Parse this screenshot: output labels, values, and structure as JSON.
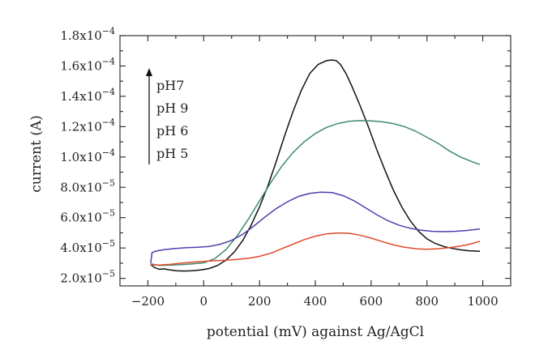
{
  "chart_data": {
    "type": "line",
    "title": "",
    "xlabel": "potential (mV) against Ag/AgCl",
    "ylabel": "current (A)",
    "xlim": [
      -300,
      1100
    ],
    "ylim": [
      1.5e-05,
      0.00018
    ],
    "x_ticks": [
      {
        "value": -200,
        "label": "−200"
      },
      {
        "value": 0,
        "label": "0"
      },
      {
        "value": 200,
        "label": "200"
      },
      {
        "value": 400,
        "label": "400"
      },
      {
        "value": 600,
        "label": "600"
      },
      {
        "value": 800,
        "label": "800"
      },
      {
        "value": 1000,
        "label": "1000"
      }
    ],
    "y_ticks": [
      {
        "value": 2e-05,
        "mantissa": "2.0x10",
        "exp": "−5"
      },
      {
        "value": 4e-05,
        "mantissa": "4.0x10",
        "exp": "−5"
      },
      {
        "value": 6e-05,
        "mantissa": "6.0x10",
        "exp": "−5"
      },
      {
        "value": 8e-05,
        "mantissa": "8.0x10",
        "exp": "−5"
      },
      {
        "value": 0.0001,
        "mantissa": "1.0x10",
        "exp": "−4"
      },
      {
        "value": 0.00012,
        "mantissa": "1.2x10",
        "exp": "−4"
      },
      {
        "value": 0.00014,
        "mantissa": "1.4x10",
        "exp": "−4"
      },
      {
        "value": 0.00016,
        "mantissa": "1.6x10",
        "exp": "−4"
      },
      {
        "value": 0.00018,
        "mantissa": "1.8x10",
        "exp": "−4"
      }
    ],
    "grid": false,
    "legend": {
      "placement": "top-left",
      "entries": [
        "pH7",
        "pH 9",
        "pH 6",
        "pH 5"
      ],
      "arrow": "up"
    },
    "series": [
      {
        "name": "pH7",
        "color": "#111111",
        "x": [
          -190,
          -175,
          -160,
          -140,
          -120,
          -100,
          -70,
          -40,
          -10,
          20,
          50,
          80,
          110,
          140,
          170,
          200,
          230,
          260,
          290,
          320,
          350,
          380,
          410,
          440,
          460,
          475,
          490,
          510,
          530,
          560,
          590,
          620,
          650,
          680,
          710,
          740,
          770,
          800,
          830,
          860,
          890,
          920,
          950,
          990
        ],
        "y": [
          2.9e-05,
          2.7e-05,
          2.6e-05,
          2.62e-05,
          2.55e-05,
          2.5e-05,
          2.48e-05,
          2.5e-05,
          2.55e-05,
          2.65e-05,
          2.85e-05,
          3.2e-05,
          3.75e-05,
          4.5e-05,
          5.5e-05,
          6.7e-05,
          8.1e-05,
          9.7e-05,
          0.000114,
          0.00013,
          0.000144,
          0.000155,
          0.000161,
          0.0001635,
          0.000164,
          0.0001635,
          0.000161,
          0.000155,
          0.000147,
          0.000134,
          0.00012,
          0.000105,
          9.1e-05,
          7.8e-05,
          6.7e-05,
          5.8e-05,
          5.1e-05,
          4.6e-05,
          4.3e-05,
          4.1e-05,
          3.97e-05,
          3.88e-05,
          3.82e-05,
          3.78e-05
        ]
      },
      {
        "name": "pH 9",
        "color": "#3f8a6e",
        "x": [
          -190,
          -160,
          -120,
          -80,
          -40,
          0,
          40,
          80,
          120,
          160,
          200,
          240,
          280,
          320,
          360,
          400,
          440,
          480,
          520,
          560,
          600,
          640,
          680,
          720,
          760,
          800,
          840,
          880,
          920,
          960,
          990
        ],
        "y": [
          2.95e-05,
          2.85e-05,
          2.88e-05,
          2.9e-05,
          2.95e-05,
          3.02e-05,
          3.3e-05,
          3.9e-05,
          4.8e-05,
          5.9e-05,
          7.1e-05,
          8.3e-05,
          9.4e-05,
          0.000103,
          0.00011,
          0.0001155,
          0.0001195,
          0.000122,
          0.0001235,
          0.000124,
          0.0001238,
          0.0001232,
          0.000122,
          0.00012,
          0.000117,
          0.000113,
          0.000109,
          0.000104,
          0.0001,
          9.7e-05,
          9.5e-05
        ]
      },
      {
        "name": "pH 6",
        "color": "#4b3fae",
        "x": [
          -190,
          -185,
          -170,
          -140,
          -100,
          -60,
          -20,
          20,
          60,
          100,
          140,
          180,
          220,
          260,
          300,
          340,
          380,
          420,
          460,
          500,
          540,
          580,
          620,
          660,
          700,
          740,
          780,
          820,
          860,
          900,
          940,
          990
        ],
        "y": [
          3e-05,
          3.7e-05,
          3.8e-05,
          3.9e-05,
          3.97e-05,
          4.02e-05,
          4.05e-05,
          4.1e-05,
          4.25e-05,
          4.5e-05,
          4.9e-05,
          5.45e-05,
          6.05e-05,
          6.6e-05,
          7.05e-05,
          7.4e-05,
          7.6e-05,
          7.68e-05,
          7.65e-05,
          7.45e-05,
          7.1e-05,
          6.65e-05,
          6.2e-05,
          5.8e-05,
          5.5e-05,
          5.3e-05,
          5.17e-05,
          5.1e-05,
          5.08e-05,
          5.1e-05,
          5.15e-05,
          5.25e-05
        ]
      },
      {
        "name": "pH 5",
        "color": "#e04a2a",
        "x": [
          -190,
          -160,
          -120,
          -80,
          -40,
          0,
          40,
          80,
          120,
          160,
          200,
          240,
          280,
          320,
          360,
          400,
          440,
          480,
          520,
          560,
          600,
          640,
          680,
          720,
          760,
          800,
          840,
          880,
          920,
          960,
          990
        ],
        "y": [
          2.9e-05,
          2.88e-05,
          2.92e-05,
          3e-05,
          3.07e-05,
          3.12e-05,
          3.16e-05,
          3.2e-05,
          3.25e-05,
          3.32e-05,
          3.45e-05,
          3.65e-05,
          3.95e-05,
          4.25e-05,
          4.55e-05,
          4.78e-05,
          4.93e-05,
          4.99e-05,
          4.97e-05,
          4.85e-05,
          4.65e-05,
          4.42e-05,
          4.2e-05,
          4.05e-05,
          3.95e-05,
          3.92e-05,
          3.95e-05,
          4.02e-05,
          4.12e-05,
          4.28e-05,
          4.45e-05
        ]
      }
    ]
  }
}
